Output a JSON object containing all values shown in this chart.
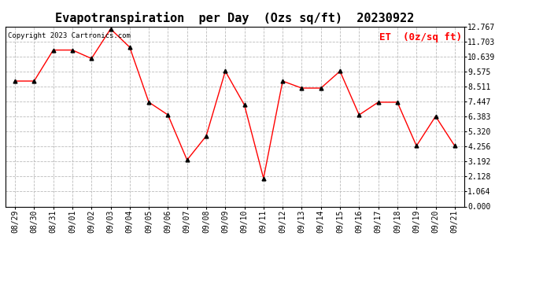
{
  "title": "Evapotranspiration  per Day  (Ozs sq/ft)  20230922",
  "copyright": "Copyright 2023 Cartronics.com",
  "legend_label": "ET  (0z/sq ft)",
  "dates": [
    "08/29",
    "08/30",
    "08/31",
    "09/01",
    "09/02",
    "09/03",
    "09/04",
    "09/05",
    "09/06",
    "09/07",
    "09/08",
    "09/09",
    "09/10",
    "09/11",
    "09/12",
    "09/13",
    "09/14",
    "09/15",
    "09/16",
    "09/17",
    "09/18",
    "09/19",
    "09/20",
    "09/21"
  ],
  "values": [
    8.9,
    8.9,
    11.1,
    11.1,
    10.5,
    12.6,
    11.3,
    7.4,
    6.5,
    3.3,
    5.0,
    9.6,
    7.2,
    2.0,
    8.9,
    8.4,
    8.4,
    9.6,
    6.5,
    7.4,
    7.4,
    4.3,
    6.4,
    4.3
  ],
  "line_color": "red",
  "marker_color": "black",
  "marker": "^",
  "grid_color": "#bbbbbb",
  "background_color": "white",
  "ymin": 0.0,
  "ymax": 12.767,
  "yticks": [
    0.0,
    1.064,
    2.128,
    3.192,
    4.256,
    5.32,
    6.383,
    7.447,
    8.511,
    9.575,
    10.639,
    11.703,
    12.767
  ],
  "title_fontsize": 11,
  "copyright_fontsize": 6.5,
  "legend_fontsize": 9,
  "tick_fontsize": 7
}
